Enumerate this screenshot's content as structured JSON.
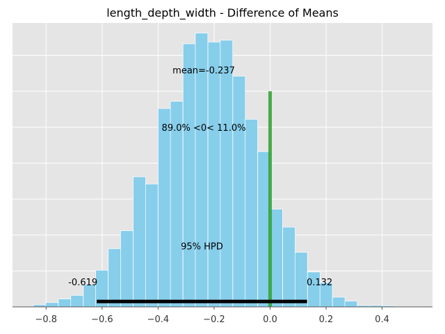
{
  "chart_data": {
    "type": "bar",
    "title": "length_depth_width - Difference of Means",
    "xlim": [
      -0.92,
      0.58
    ],
    "ylim": [
      0,
      790
    ],
    "xticks": [
      -0.8,
      -0.6,
      -0.4,
      -0.2,
      0.0,
      0.2,
      0.4
    ],
    "xtick_labels": [
      "−0.8",
      "−0.6",
      "−0.4",
      "−0.2",
      "0.0",
      "0.2",
      "0.4"
    ],
    "yticks": [
      0,
      100,
      200,
      300,
      400,
      500,
      600,
      700
    ],
    "grid": true,
    "bin_width": 0.0445,
    "bins": [
      {
        "x0": -0.845,
        "count": 6
      },
      {
        "x0": -0.801,
        "count": 12
      },
      {
        "x0": -0.756,
        "count": 22
      },
      {
        "x0": -0.712,
        "count": 32
      },
      {
        "x0": -0.667,
        "count": 62
      },
      {
        "x0": -0.623,
        "count": 102
      },
      {
        "x0": -0.578,
        "count": 162
      },
      {
        "x0": -0.534,
        "count": 212
      },
      {
        "x0": -0.489,
        "count": 362
      },
      {
        "x0": -0.445,
        "count": 342
      },
      {
        "x0": -0.4,
        "count": 552
      },
      {
        "x0": -0.356,
        "count": 572
      },
      {
        "x0": -0.311,
        "count": 732
      },
      {
        "x0": -0.267,
        "count": 762
      },
      {
        "x0": -0.222,
        "count": 737
      },
      {
        "x0": -0.178,
        "count": 742
      },
      {
        "x0": -0.133,
        "count": 642
      },
      {
        "x0": -0.089,
        "count": 522
      },
      {
        "x0": -0.044,
        "count": 432
      },
      {
        "x0": 0.0,
        "count": 272
      },
      {
        "x0": 0.045,
        "count": 222
      },
      {
        "x0": 0.089,
        "count": 152
      },
      {
        "x0": 0.134,
        "count": 97
      },
      {
        "x0": 0.178,
        "count": 67
      },
      {
        "x0": 0.223,
        "count": 27
      },
      {
        "x0": 0.267,
        "count": 16
      },
      {
        "x0": 0.312,
        "count": 4
      },
      {
        "x0": 0.356,
        "count": 4
      },
      {
        "x0": 0.401,
        "count": 3
      }
    ],
    "bar_color": "#87ceeb",
    "reference_line": {
      "x": 0.0,
      "y_top": 600,
      "color": "#2ca02c"
    },
    "hpd": {
      "low": -0.619,
      "high": 0.132,
      "y": 15,
      "low_label": "-0.619",
      "high_label": "0.132",
      "label": "95% HPD"
    },
    "annotations": {
      "mean_label": "mean=-0.237",
      "mean_x": -0.237,
      "mean_y": 650,
      "ref_label": "89.0% <0< 11.0%",
      "ref_x": -0.237,
      "ref_y": 490,
      "hpd_label_y": 160,
      "hpd_value_y": 60
    }
  }
}
